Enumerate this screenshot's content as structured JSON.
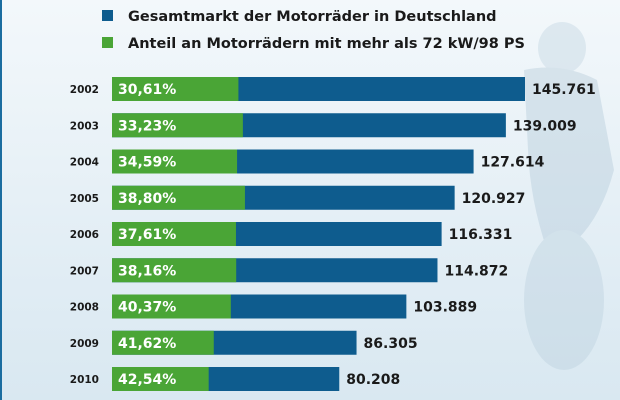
{
  "chart_data": {
    "type": "bar",
    "orientation": "horizontal",
    "stacked_overlay": true,
    "legend": [
      {
        "label": "Gesamtmarkt der Motorräder in Deutschland",
        "color": "#0e5c8e"
      },
      {
        "label": "Anteil an Motorrädern mit mehr als 72 kW/98 PS",
        "color": "#4aa536"
      }
    ],
    "legend_position": "top",
    "categories": [
      "2002",
      "2003",
      "2004",
      "2005",
      "2006",
      "2007",
      "2008",
      "2009",
      "2010"
    ],
    "series": [
      {
        "name": "Gesamtmarkt der Motorräder in Deutschland",
        "values": [
          145761,
          139009,
          127614,
          120927,
          116331,
          114872,
          103889,
          86305,
          80208
        ],
        "labels": [
          "145.761",
          "139.009",
          "127.614",
          "120.927",
          "116.331",
          "114.872",
          "103.889",
          "86.305",
          "80.208"
        ]
      },
      {
        "name": "Anteil an Motorrädern mit mehr als 72 kW/98 PS",
        "values": [
          30.61,
          33.23,
          34.59,
          38.8,
          37.61,
          38.16,
          40.37,
          41.62,
          42.54
        ],
        "labels": [
          "30,61%",
          "33,23%",
          "34,59%",
          "38,80%",
          "37,61%",
          "38,16%",
          "40,37%",
          "41,62%",
          "42,54%"
        ]
      }
    ],
    "grid": false
  }
}
